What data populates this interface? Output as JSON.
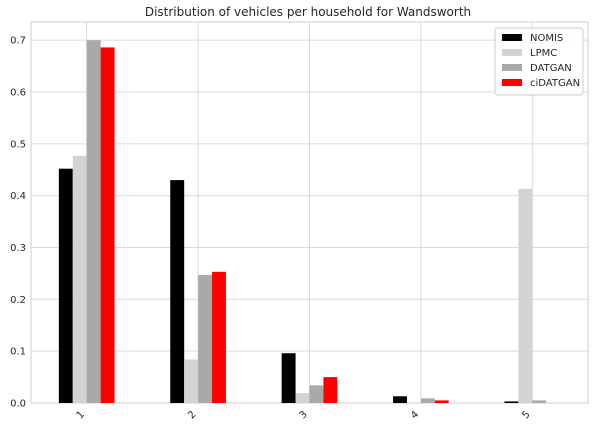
{
  "chart_data": {
    "type": "bar",
    "title": "Distribution of vehicles per household for Wandsworth",
    "xlabel": "",
    "ylabel": "",
    "categories": [
      "1",
      "2",
      "3",
      "4",
      "5"
    ],
    "ylim": [
      0,
      0.735
    ],
    "yticks": [
      "0.0",
      "0.1",
      "0.2",
      "0.3",
      "0.4",
      "0.5",
      "0.6",
      "0.7"
    ],
    "grid": true,
    "legend_position": "top-right",
    "series": [
      {
        "name": "NOMIS",
        "color": "#000000",
        "values": [
          0.452,
          0.43,
          0.096,
          0.013,
          0.003
        ]
      },
      {
        "name": "LPMC",
        "color": "#d3d3d3",
        "values": [
          0.477,
          0.084,
          0.019,
          0.0,
          0.413
        ]
      },
      {
        "name": "DATGAN",
        "color": "#a9a9a9",
        "values": [
          0.7,
          0.247,
          0.034,
          0.009,
          0.005
        ]
      },
      {
        "name": "ciDATGAN",
        "color": "#ff0000",
        "values": [
          0.686,
          0.253,
          0.05,
          0.005,
          0.0
        ]
      }
    ]
  }
}
